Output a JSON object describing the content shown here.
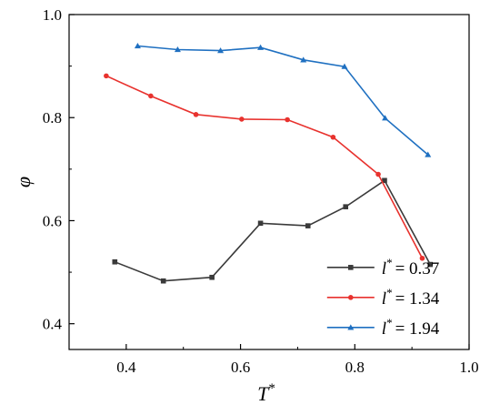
{
  "chart_data": {
    "type": "line",
    "xlabel": "T",
    "xlabel_sup": "*",
    "ylabel": "φ",
    "xlim": [
      0.3,
      1.0
    ],
    "ylim": [
      0.35,
      1.0
    ],
    "xticks": [
      0.4,
      0.6,
      0.8,
      1.0
    ],
    "yticks": [
      0.4,
      0.6,
      0.8,
      1.0
    ],
    "xtick_labels": [
      "0.4",
      "0.6",
      "0.8",
      "1.0"
    ],
    "ytick_labels": [
      "0.4",
      "0.6",
      "0.8",
      "1.0"
    ],
    "grid": false,
    "legend_position": "bottom-right",
    "series": [
      {
        "name": "l* = 0.37",
        "legend_var": "l",
        "legend_value": "= 0.37",
        "color": "#3a3a3a",
        "marker": "square",
        "x": [
          0.38,
          0.465,
          0.55,
          0.635,
          0.718,
          0.784,
          0.852,
          0.932
        ],
        "y": [
          0.52,
          0.483,
          0.49,
          0.595,
          0.59,
          0.627,
          0.678,
          0.515
        ]
      },
      {
        "name": "l* = 1.34",
        "legend_var": "l",
        "legend_value": "= 1.34",
        "color": "#e8322e",
        "marker": "circle",
        "x": [
          0.365,
          0.443,
          0.522,
          0.602,
          0.682,
          0.762,
          0.841,
          0.918
        ],
        "y": [
          0.881,
          0.842,
          0.806,
          0.797,
          0.796,
          0.762,
          0.69,
          0.527
        ]
      },
      {
        "name": "l* = 1.94",
        "legend_var": "l",
        "legend_value": "= 1.94",
        "color": "#1f70c1",
        "marker": "triangle",
        "x": [
          0.42,
          0.49,
          0.565,
          0.635,
          0.71,
          0.782,
          0.853,
          0.928
        ],
        "y": [
          0.939,
          0.932,
          0.93,
          0.936,
          0.912,
          0.899,
          0.799,
          0.728
        ]
      }
    ]
  }
}
